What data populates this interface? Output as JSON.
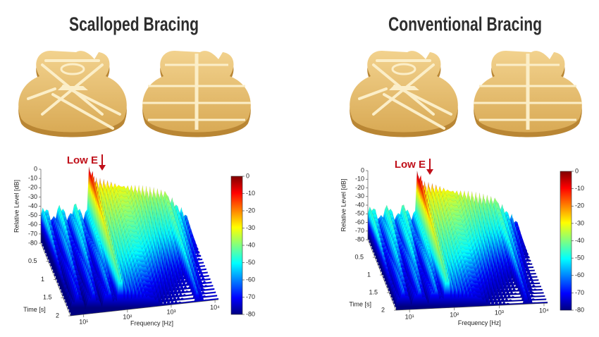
{
  "panels": [
    {
      "title": "Scalloped Bracing",
      "annotation": "Low E",
      "z_axis": {
        "label": "Relative Level [dB]",
        "range": [
          -80,
          0
        ],
        "ticks": [
          0,
          -10,
          -20,
          -30,
          -40,
          -50,
          -60,
          -70,
          -80
        ]
      },
      "time_axis": {
        "label": "Time [s]",
        "range": [
          0,
          2
        ],
        "ticks": [
          0.5,
          1,
          1.5,
          2
        ]
      },
      "freq_axis": {
        "label": "Frequency [Hz]",
        "range": [
          5,
          12000
        ],
        "ticks": [
          {
            "value": 10,
            "label": "10¹"
          },
          {
            "value": 100,
            "label": "10²"
          },
          {
            "value": 1000,
            "label": "10³"
          },
          {
            "value": 10000,
            "label": "10⁴"
          }
        ]
      },
      "colorbar": {
        "range": [
          -80,
          0
        ],
        "ticks": [
          0,
          -10,
          -20,
          -30,
          -40,
          -50,
          -60,
          -70,
          -80
        ]
      }
    },
    {
      "title": "Conventional Bracing",
      "annotation": "Low E",
      "z_axis": {
        "label": "Relative Level [dB]",
        "range": [
          -80,
          0
        ],
        "ticks": [
          0,
          -10,
          -20,
          -30,
          -40,
          -50,
          -60,
          -70,
          -80
        ]
      },
      "time_axis": {
        "label": "Time [s]",
        "range": [
          0,
          2
        ],
        "ticks": [
          0.5,
          1,
          1.5,
          2
        ]
      },
      "freq_axis": {
        "label": "Frequency [Hz]",
        "range": [
          5,
          12000
        ],
        "ticks": [
          {
            "value": 10,
            "label": "10¹"
          },
          {
            "value": 100,
            "label": "10²"
          },
          {
            "value": 1000,
            "label": "10³"
          },
          {
            "value": 10000,
            "label": "10⁴"
          }
        ]
      },
      "colorbar": {
        "range": [
          -80,
          0
        ],
        "ticks": [
          0,
          -10,
          -20,
          -30,
          -40,
          -50,
          -60,
          -70,
          -80
        ]
      }
    }
  ]
}
